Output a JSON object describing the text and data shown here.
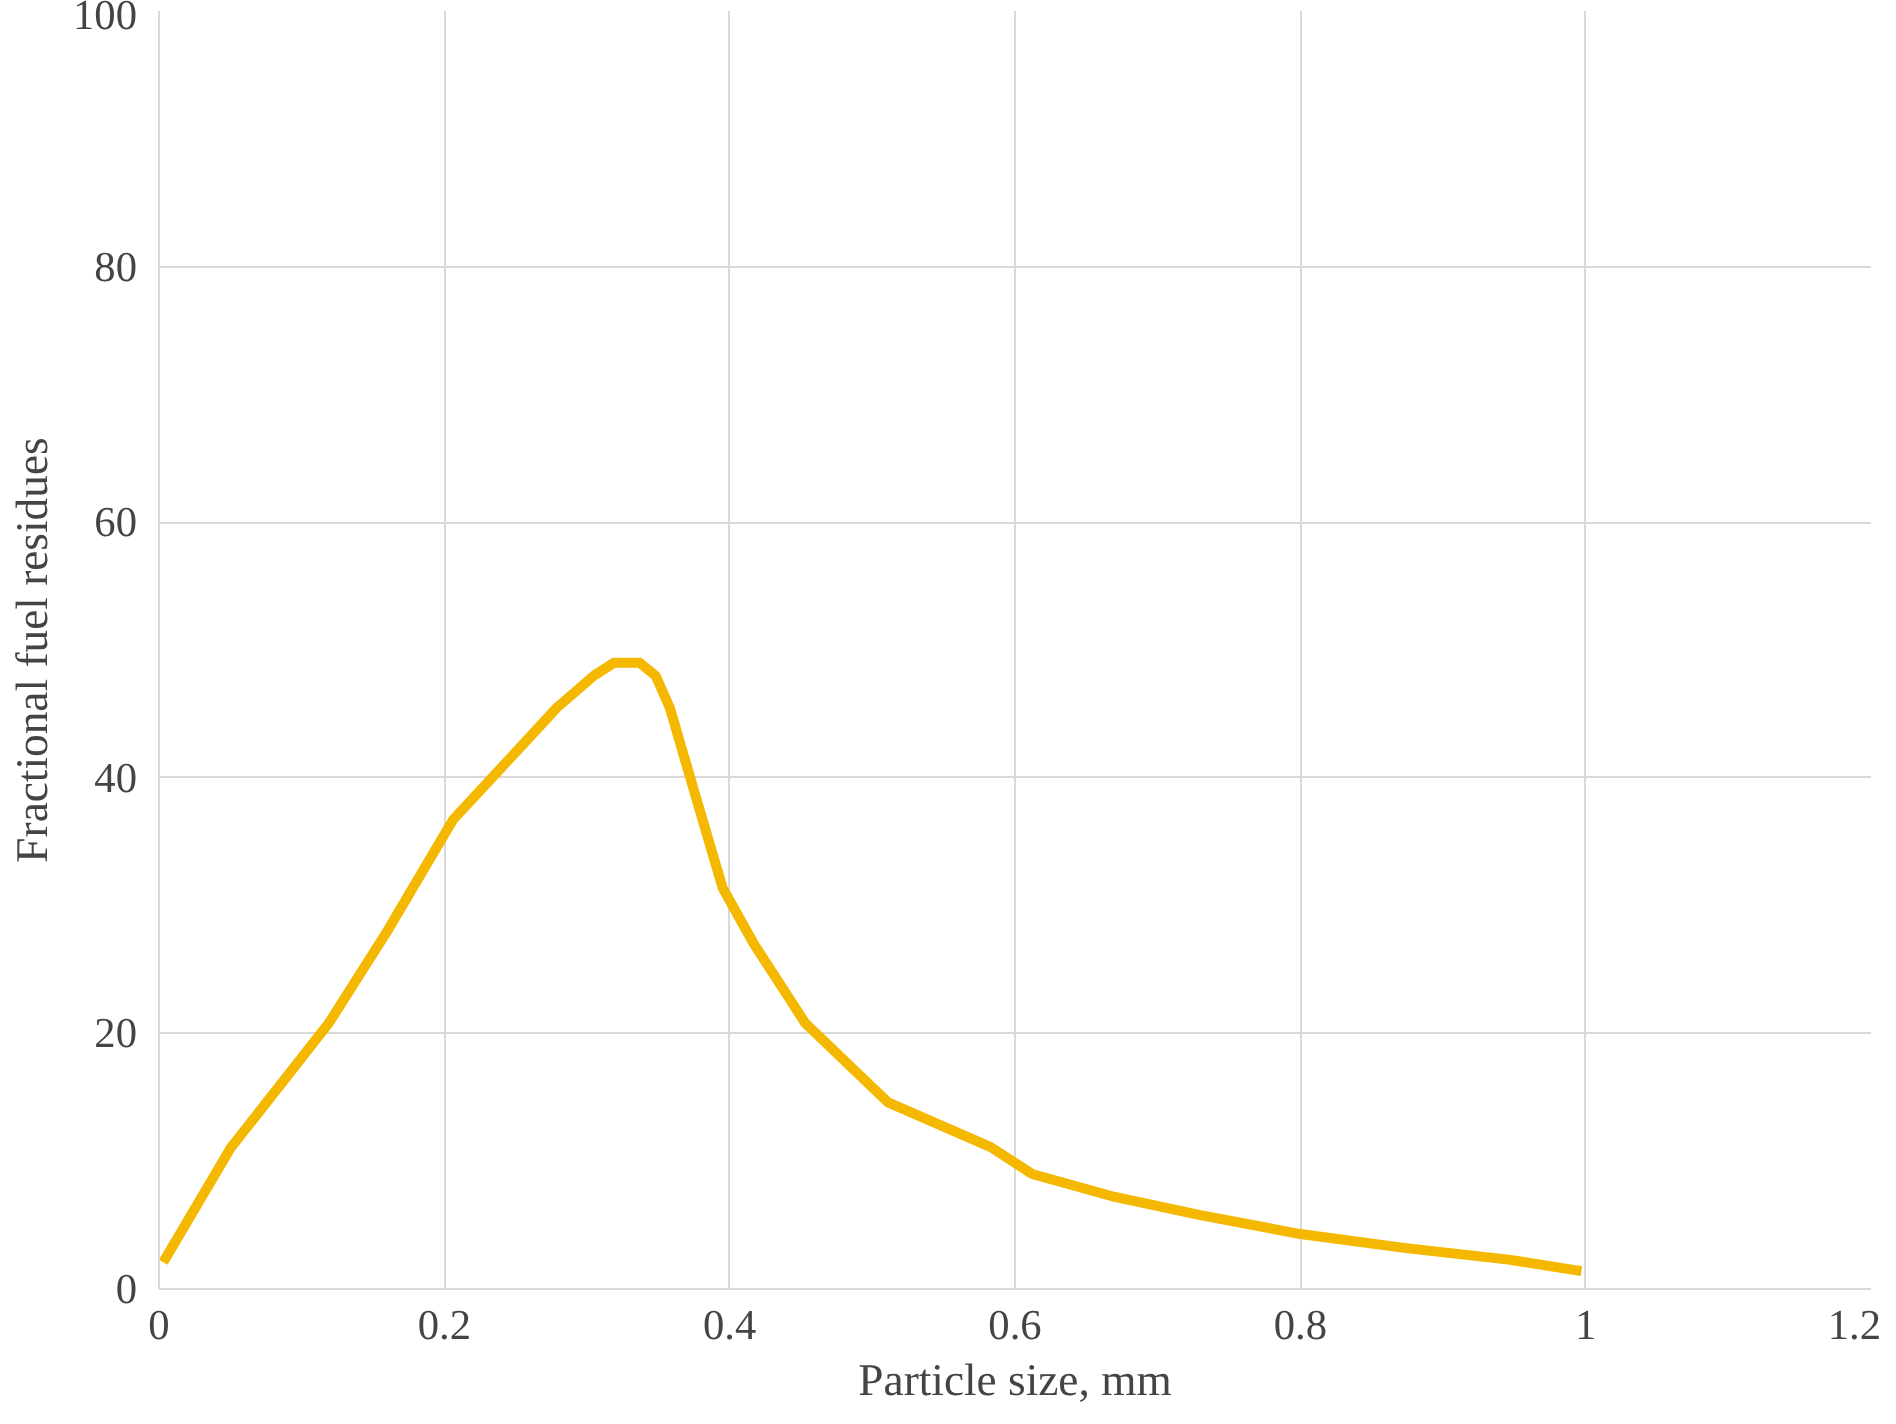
{
  "chart_data": {
    "type": "line",
    "xlabel": "Particle size, mm",
    "ylabel": "Fractional fuel residues",
    "xlim": [
      0,
      1.2
    ],
    "xticks": [
      0,
      0.2,
      0.4,
      0.6,
      0.8,
      1,
      1.2
    ],
    "ylim": [
      0,
      100
    ],
    "yticks": [
      0,
      20,
      40,
      60,
      80,
      100
    ],
    "grid": true,
    "marker": "none",
    "line_style": "solid",
    "series": [
      {
        "color": "#f5b800",
        "x": [
          0.003,
          0.05,
          0.119,
          0.16,
          0.206,
          0.25,
          0.279,
          0.305,
          0.319,
          0.337,
          0.348,
          0.358,
          0.375,
          0.395,
          0.417,
          0.453,
          0.511,
          0.583,
          0.612,
          0.67,
          0.729,
          0.8,
          0.874,
          0.946,
          0.997
        ],
        "values": [
          2.1,
          11,
          20.8,
          28,
          36.7,
          42,
          45.5,
          48,
          49.0,
          49.0,
          48,
          45.5,
          39,
          31.4,
          27,
          20.8,
          14.6,
          11.1,
          9.0,
          7.2,
          5.8,
          4.3,
          3.2,
          2.3,
          1.4
        ]
      }
    ]
  }
}
